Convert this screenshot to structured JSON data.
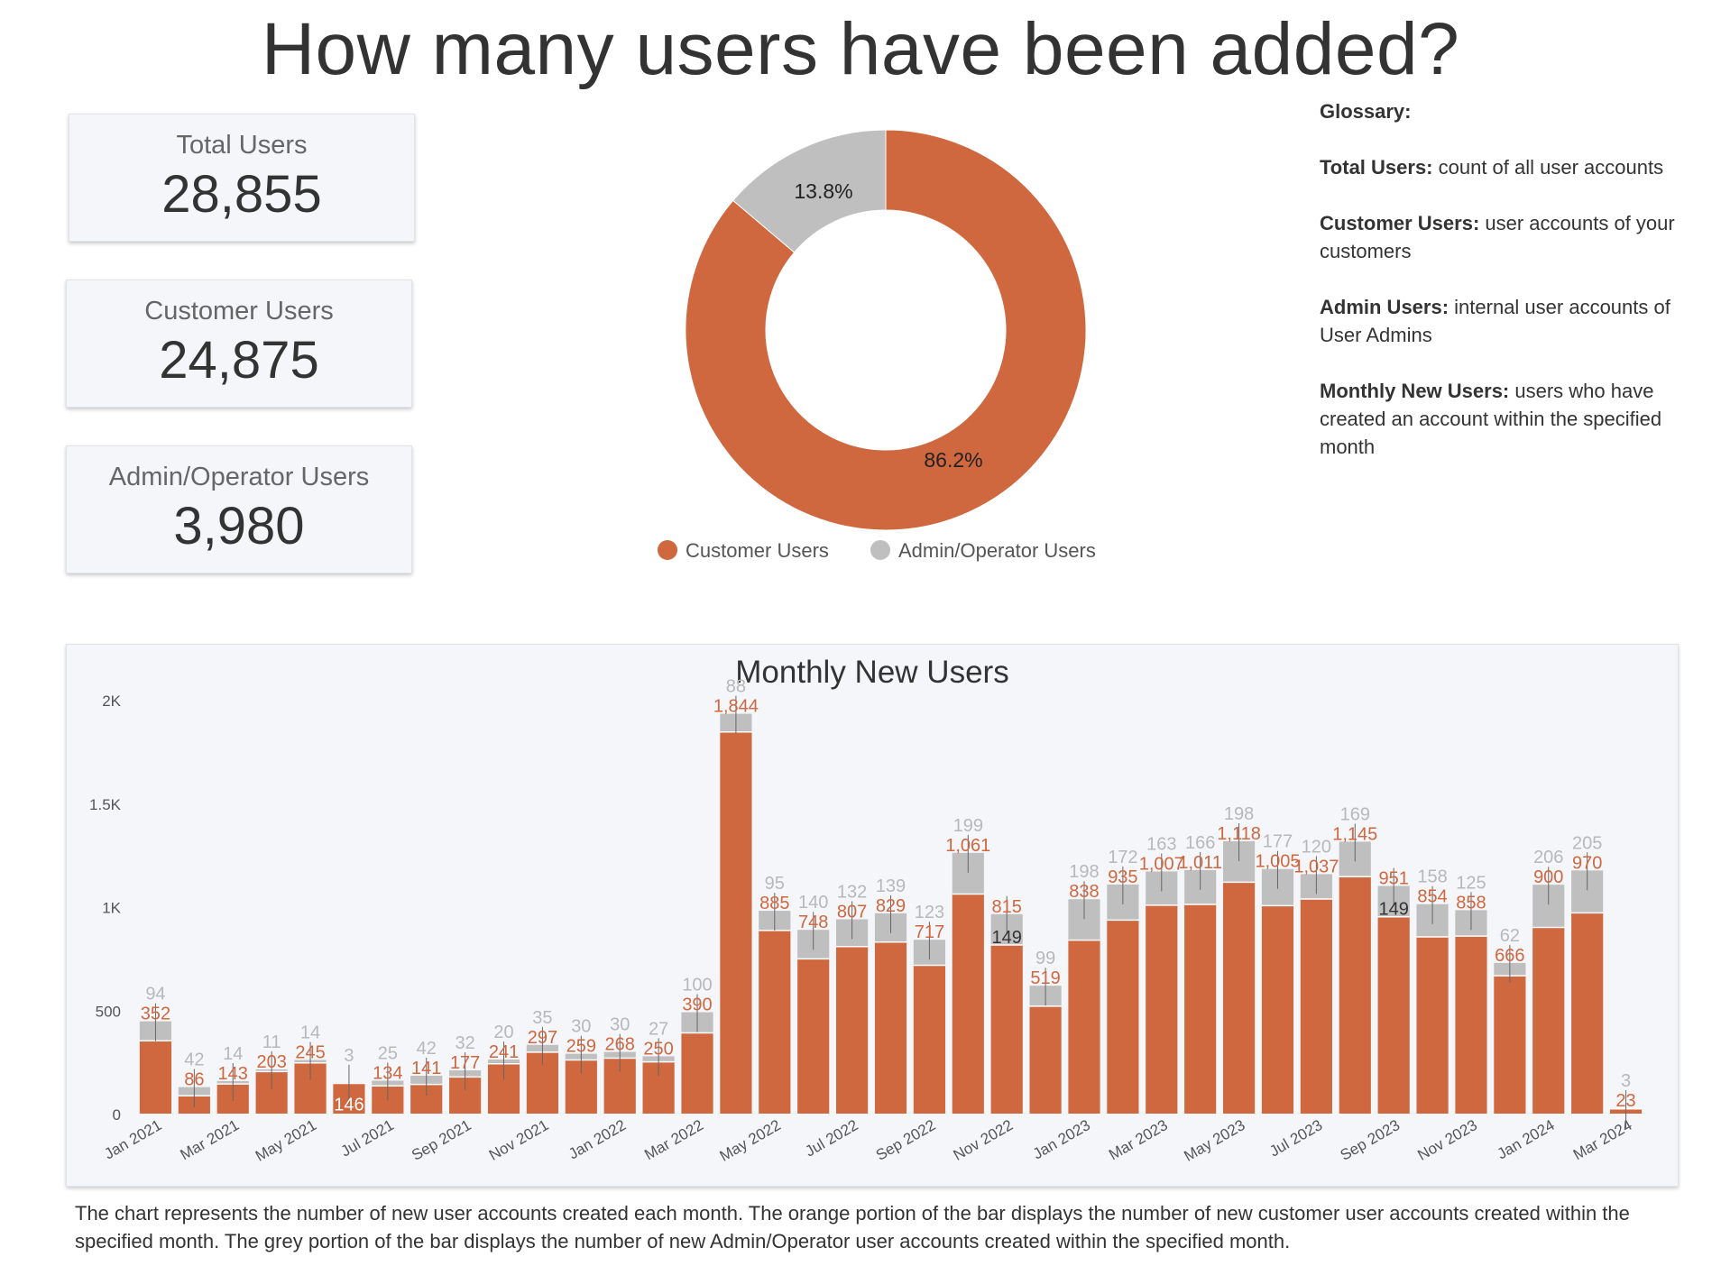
{
  "title": "How many users have been added?",
  "kpis": {
    "total": {
      "label": "Total Users",
      "value": "28,855"
    },
    "customer": {
      "label": "Customer Users",
      "value": "24,875"
    },
    "admin": {
      "label": "Admin/Operator Users",
      "value": "3,980"
    }
  },
  "colors": {
    "customer": "#cf673f",
    "admin": "#bfbfbf",
    "admin_label": "#b8b8b8"
  },
  "glossary": {
    "heading": "Glossary:",
    "entries": [
      {
        "term": "Total Users:",
        "definition": " count of all user accounts"
      },
      {
        "term": "Customer Users:",
        "definition": " user accounts of your customers"
      },
      {
        "term": "Admin Users:",
        "definition": " internal user accounts of User Admins"
      },
      {
        "term": "Monthly New Users:",
        "definition": " users who have created an account within the specified month"
      }
    ]
  },
  "chart_data": [
    {
      "type": "pie",
      "categories": [
        "Customer Users",
        "Admin/Operator Users"
      ],
      "values": [
        86.2,
        13.8
      ],
      "labels": [
        "86.2%",
        "13.8%"
      ],
      "legend": "bottom"
    },
    {
      "type": "bar",
      "stacked": true,
      "title": "Monthly New Users",
      "categories": [
        "Jan 2021",
        "Feb 2021",
        "Mar 2021",
        "Apr 2021",
        "May 2021",
        "Jun 2021",
        "Jul 2021",
        "Aug 2021",
        "Sep 2021",
        "Oct 2021",
        "Nov 2021",
        "Dec 2021",
        "Jan 2022",
        "Feb 2022",
        "Mar 2022",
        "Apr 2022",
        "May 2022",
        "Jun 2022",
        "Jul 2022",
        "Aug 2022",
        "Sep 2022",
        "Oct 2022",
        "Nov 2022",
        "Dec 2022",
        "Jan 2023",
        "Feb 2023",
        "Mar 2023",
        "Apr 2023",
        "May 2023",
        "Jun 2023",
        "Jul 2023",
        "Aug 2023",
        "Sep 2023",
        "Oct 2023",
        "Nov 2023",
        "Dec 2023",
        "Jan 2024",
        "Feb 2024",
        "Mar 2024"
      ],
      "x_tick_labels": [
        "Jan 2021",
        "Mar 2021",
        "May 2021",
        "Jul 2021",
        "Sep 2021",
        "Nov 2021",
        "Jan 2022",
        "Mar 2022",
        "May 2022",
        "Jul 2022",
        "Sep 2022",
        "Nov 2022",
        "Jan 2023",
        "Mar 2023",
        "May 2023",
        "Jul 2023",
        "Sep 2023",
        "Nov 2023",
        "Jan 2024",
        "Mar 2024"
      ],
      "y_tick_labels": [
        "0",
        "500",
        "1K",
        "1.5K",
        "2K"
      ],
      "ylim": [
        0,
        2000
      ],
      "series": [
        {
          "values": [
            352,
            86,
            143,
            203,
            245,
            146,
            134,
            141,
            177,
            241,
            297,
            259,
            268,
            250,
            390,
            1844,
            885,
            748,
            807,
            829,
            717,
            1061,
            815,
            519,
            838,
            935,
            1007,
            1011,
            1118,
            1005,
            1037,
            1145,
            951,
            854,
            858,
            666,
            900,
            970,
            23
          ],
          "labels": [
            "352",
            "86",
            "143",
            "203",
            "245",
            "146",
            "134",
            "141",
            "177",
            "241",
            "297",
            "259",
            "268",
            "250",
            "390",
            "1,844",
            "885",
            "748",
            "807",
            "829",
            "717",
            "1,061",
            "815",
            "519",
            "838",
            "935",
            "1,007",
            "1,011",
            "1,118",
            "1,005",
            "1,037",
            "1,145",
            "951",
            "854",
            "858",
            "666",
            "900",
            "970",
            "23"
          ]
        },
        {
          "values": [
            94,
            42,
            14,
            11,
            14,
            3,
            25,
            42,
            32,
            20,
            35,
            30,
            30,
            27,
            100,
            88,
            95,
            140,
            132,
            139,
            123,
            199,
            149,
            99,
            198,
            172,
            163,
            166,
            198,
            177,
            120,
            169,
            149,
            158,
            125,
            62,
            206,
            205,
            3
          ],
          "labels": [
            "94",
            "42",
            "14",
            "11",
            "14",
            "3",
            "25",
            "42",
            "32",
            "20",
            "35",
            "30",
            "30",
            "27",
            "100",
            "88",
            "95",
            "140",
            "132",
            "139",
            "123",
            "199",
            "149",
            "99",
            "198",
            "172",
            "163",
            "166",
            "198",
            "177",
            "120",
            "169",
            "149",
            "158",
            "125",
            "62",
            "206",
            "205",
            "3"
          ]
        }
      ],
      "grid": false
    }
  ],
  "caption": "The chart represents the number of new user accounts created each month. The orange portion of the bar displays the number of new customer user accounts created within the specified month. The grey portion of the bar displays the number of new Admin/Operator user accounts created within the specified month."
}
